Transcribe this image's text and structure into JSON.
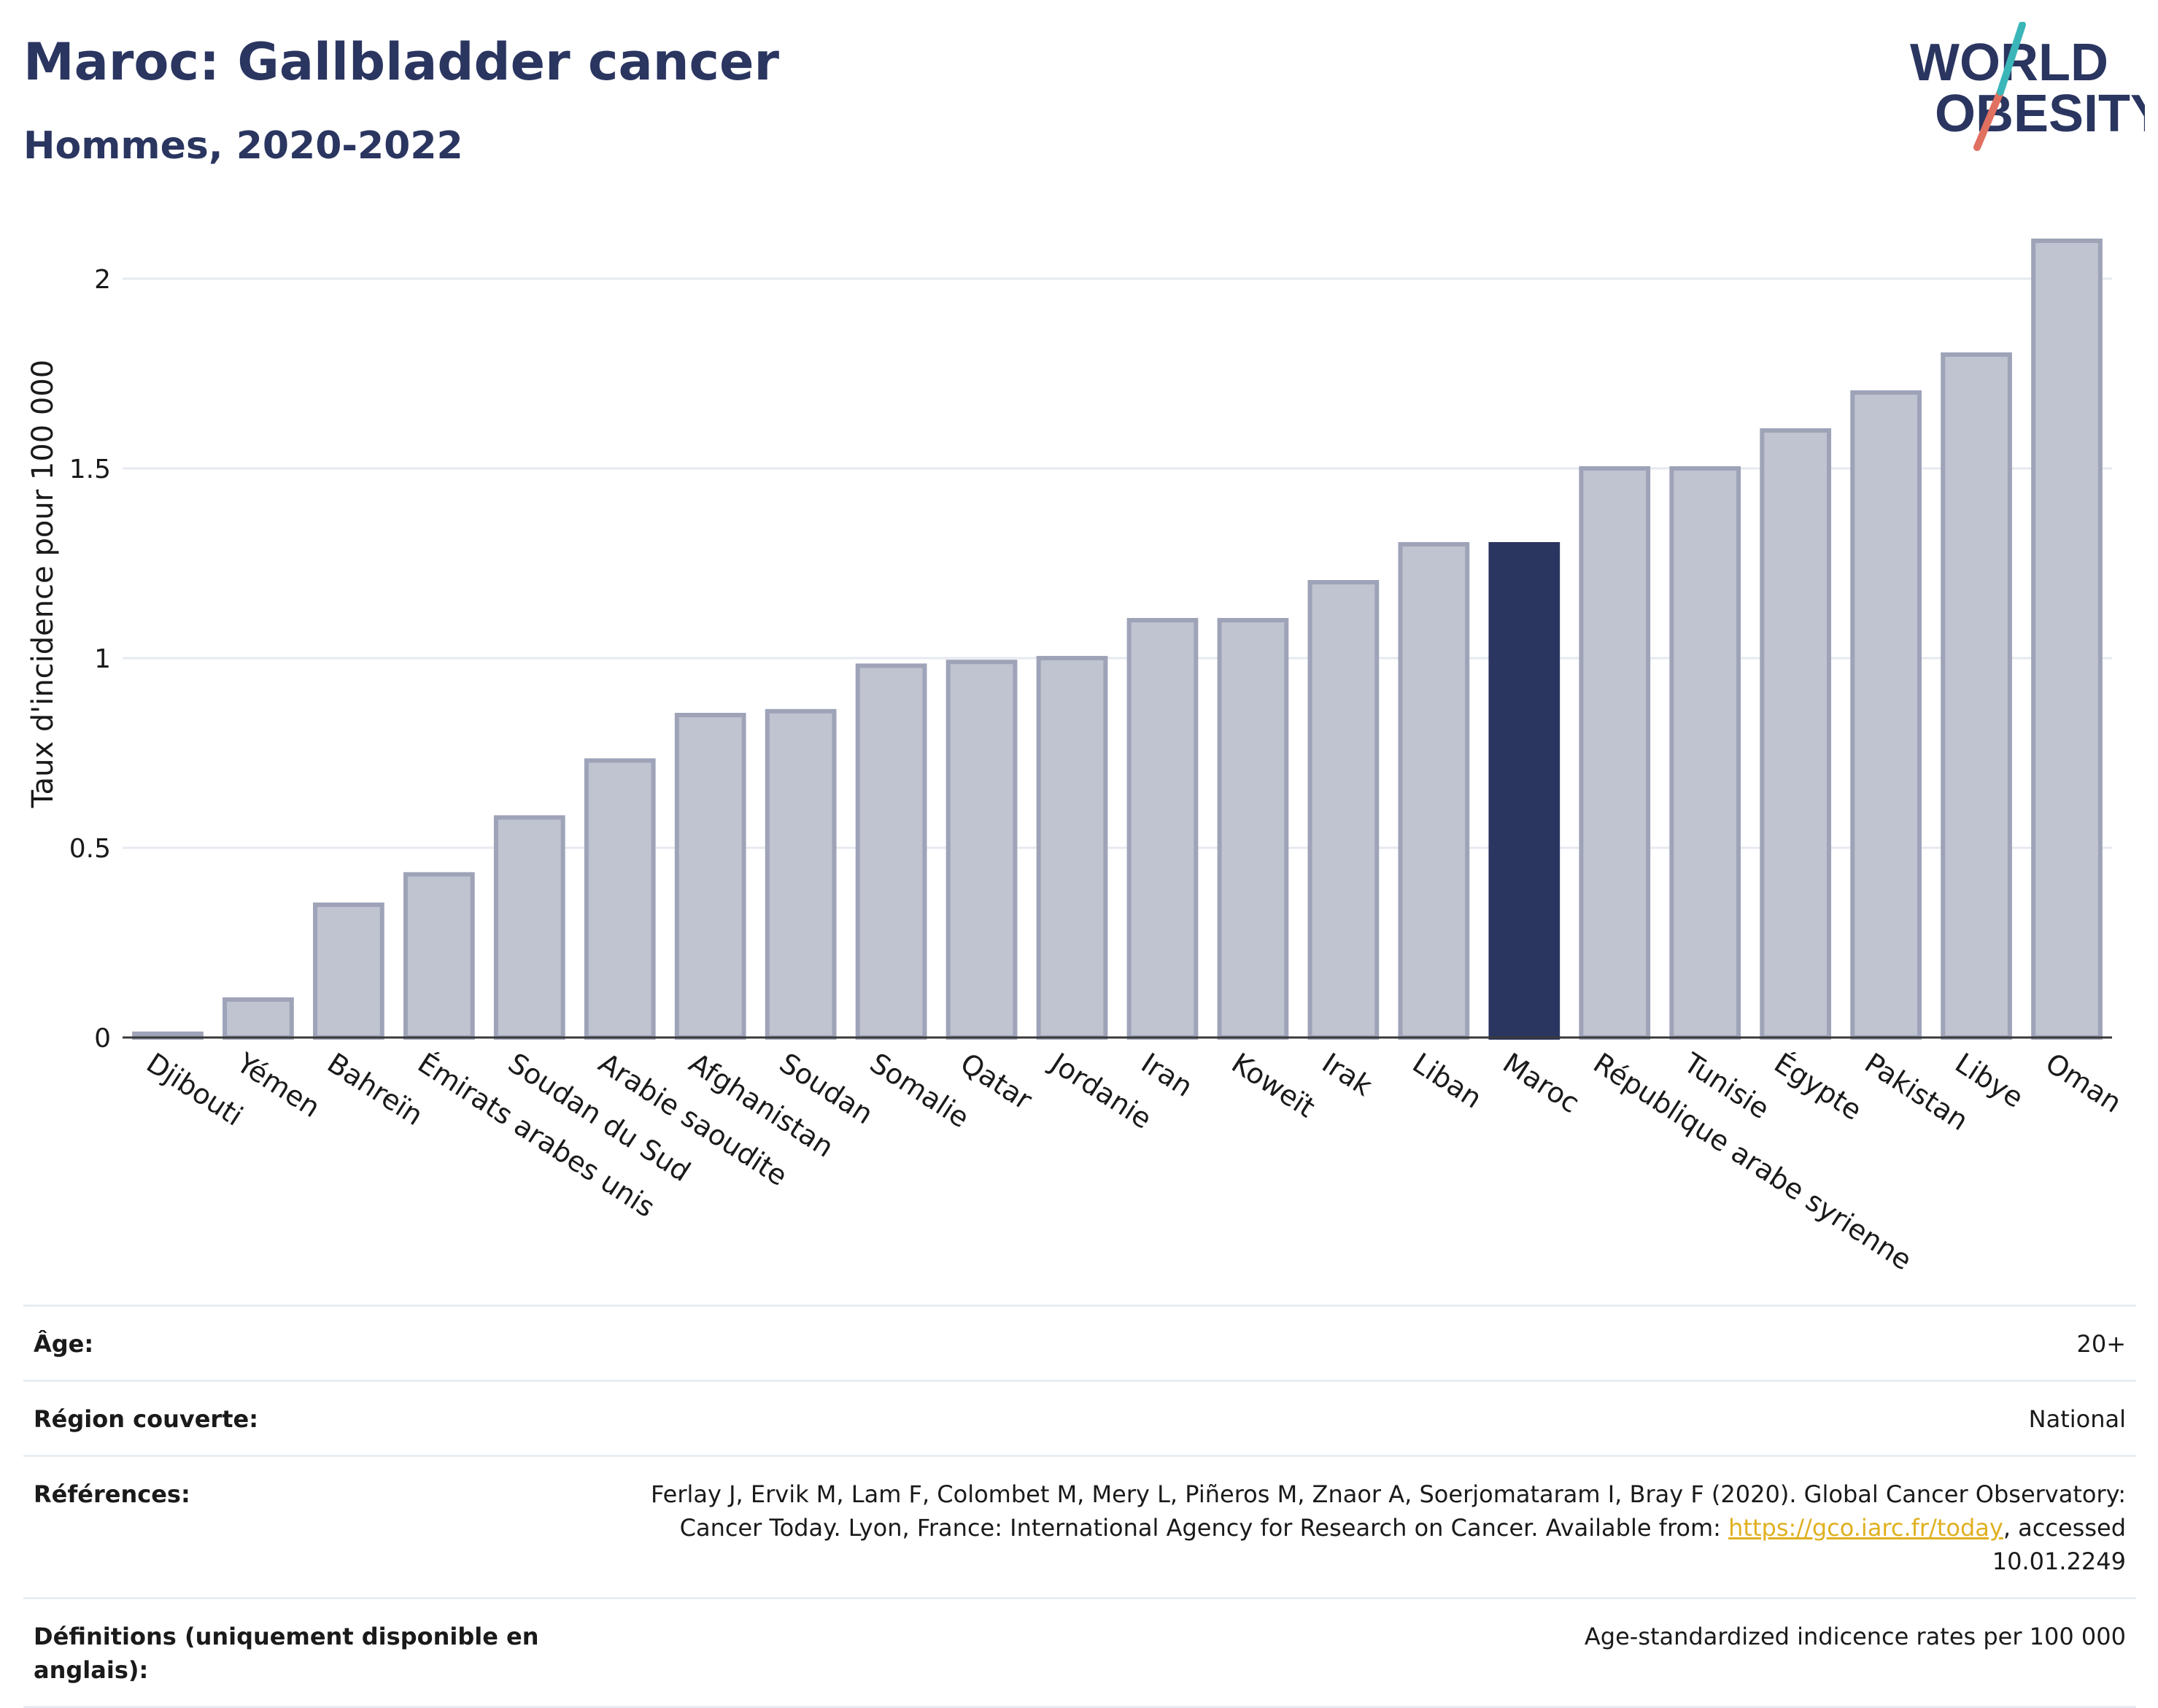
{
  "header": {
    "title": "Maroc: Gallbladder cancer",
    "subtitle": "Hommes, 2020-2022"
  },
  "logo": {
    "line1": "WORLD",
    "line2": "OBESITY",
    "colors": {
      "text": "#2a3560",
      "accent_teal": "#3bb6b8",
      "accent_red": "#e07060"
    }
  },
  "chart_data": {
    "type": "bar",
    "ylabel": "Taux d'incidence pour 100 000",
    "ylim": [
      0,
      2.1
    ],
    "yticks": [
      0,
      0.5,
      1,
      1.5,
      2
    ],
    "ytick_labels": [
      "0",
      "0.5",
      "1",
      "1.5",
      "2"
    ],
    "grid": true,
    "highlight_category": "Maroc",
    "colors": {
      "bar": "#c0c3d0",
      "bar_border": "#9ea3b8",
      "highlight": "#2a3560"
    },
    "categories": [
      "Djibouti",
      "Yémen",
      "Bahreïn",
      "Émirats arabes unis",
      "Soudan du Sud",
      "Arabie saoudite",
      "Afghanistan",
      "Soudan",
      "Somalie",
      "Qatar",
      "Jordanie",
      "Iran",
      "Koweït",
      "Irak",
      "Liban",
      "Maroc",
      "République arabe syrienne",
      "Tunisie",
      "Égypte",
      "Pakistan",
      "Libye",
      "Oman"
    ],
    "values": [
      0.01,
      0.1,
      0.35,
      0.43,
      0.58,
      0.73,
      0.85,
      0.86,
      0.98,
      0.99,
      1.0,
      1.1,
      1.1,
      1.2,
      1.3,
      1.3,
      1.5,
      1.5,
      1.6,
      1.7,
      1.8,
      2.1
    ]
  },
  "meta": [
    {
      "key": "Âge:",
      "value": "20+"
    },
    {
      "key": "Région couverte:",
      "value": "National"
    },
    {
      "key": "Références:",
      "value_pre": "Ferlay J, Ervik M, Lam F, Colombet M, Mery L, Piñeros M, Znaor A, Soerjomataram I, Bray F (2020). Global Cancer Observatory: Cancer Today. Lyon, France: International Agency for Research on Cancer. Available from: ",
      "link": "https://gco.iarc.fr/today",
      "value_post": ", accessed 10.01.2249"
    },
    {
      "key": "Définitions (uniquement disponible en anglais):",
      "value": "Age-standardized indicence rates per 100 000"
    }
  ]
}
